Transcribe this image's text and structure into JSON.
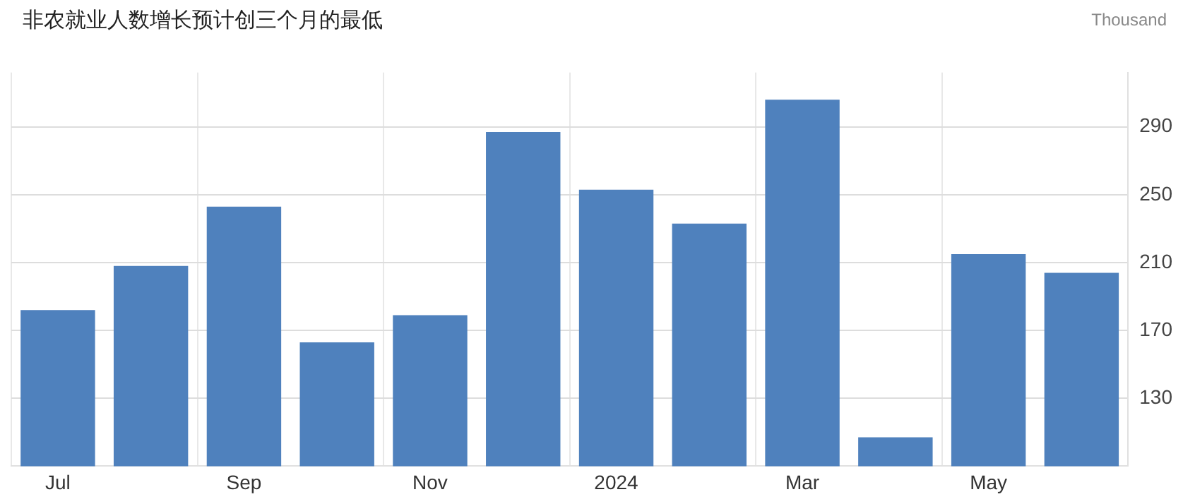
{
  "chart_data": {
    "type": "bar",
    "title": "非农就业人数增长预计创三个月的最低",
    "ylabel": "Thousand",
    "categories": [
      "Jul",
      null,
      "Sep",
      null,
      "Nov",
      null,
      "2024",
      null,
      "Mar",
      null,
      "May",
      null
    ],
    "values": [
      182,
      208,
      243,
      163,
      179,
      287,
      253,
      233,
      306,
      107,
      215,
      204
    ],
    "color": "#4f81bd",
    "ylim": [
      90,
      322
    ],
    "yticks": [
      130,
      170,
      210,
      250,
      290
    ],
    "grid": true,
    "legend": false
  }
}
